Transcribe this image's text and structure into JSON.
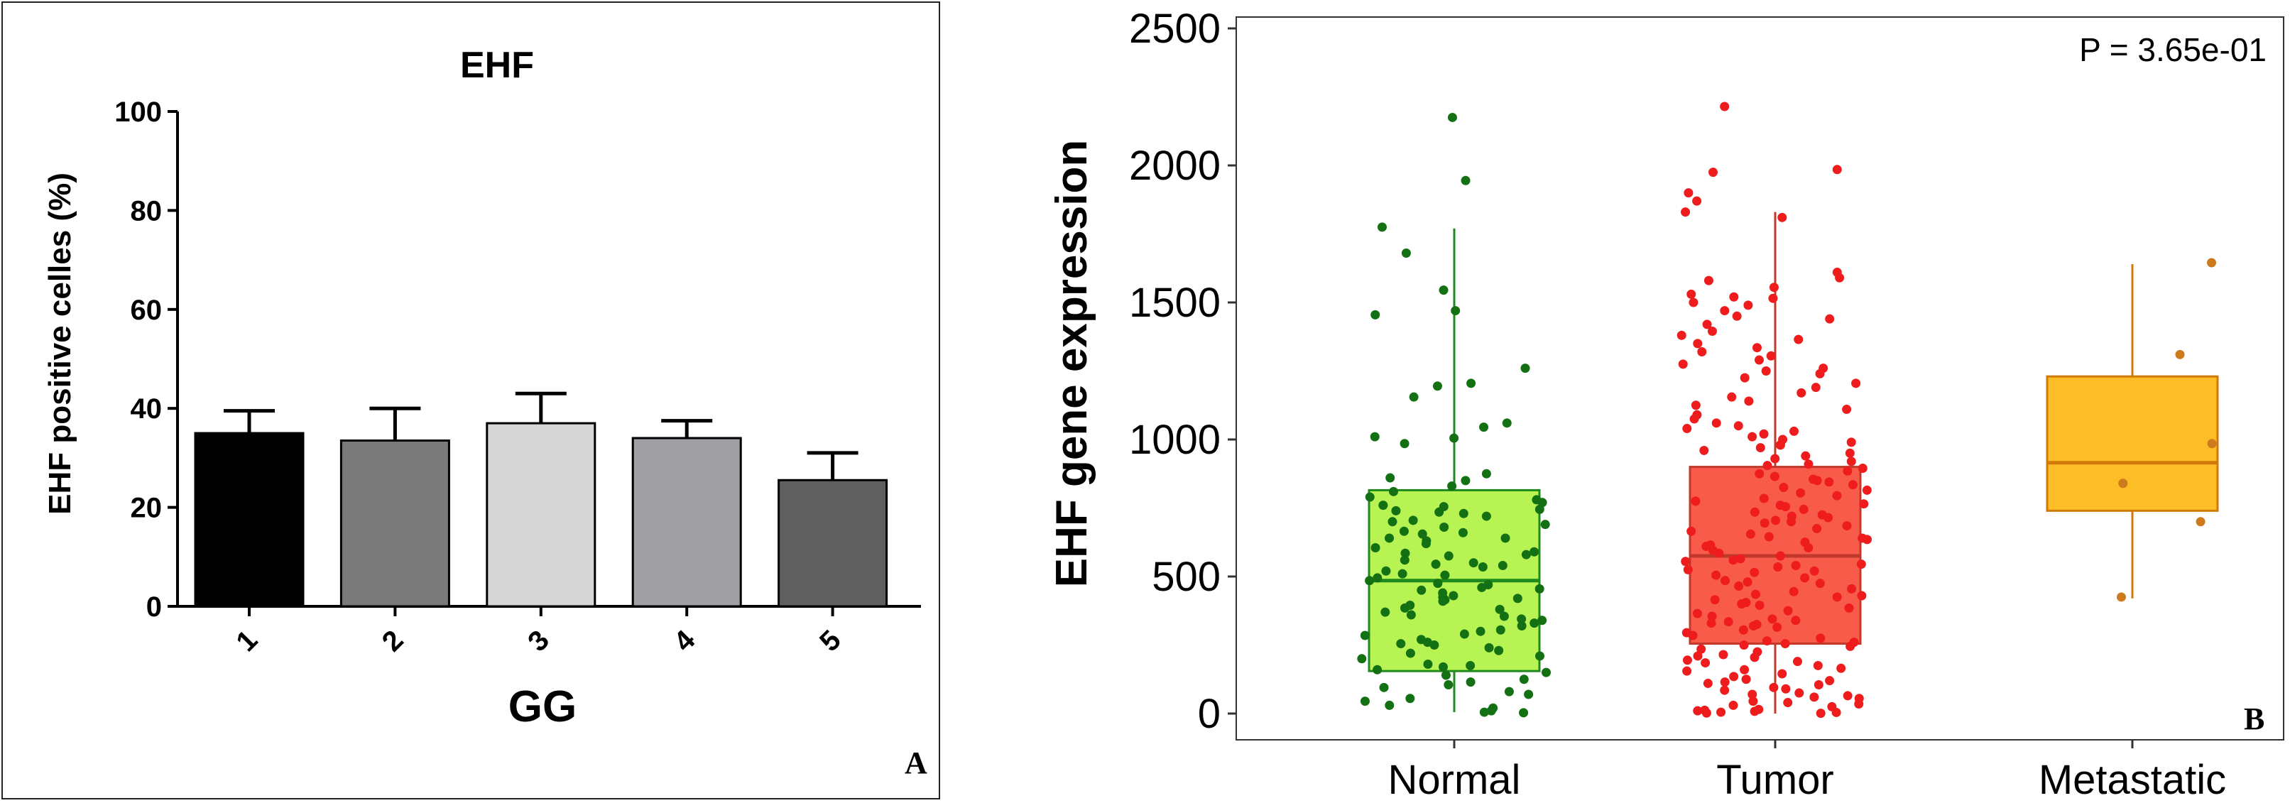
{
  "chart_data": [
    {
      "panel_label": "A",
      "type": "bar",
      "title": "EHF",
      "xlabel": "GG",
      "ylabel": "EHF positive celles (%)",
      "ylim": [
        0,
        100
      ],
      "yticks": [
        0,
        20,
        40,
        60,
        80,
        100
      ],
      "categories": [
        "1",
        "2",
        "3",
        "4",
        "5"
      ],
      "values": [
        35,
        33.5,
        37,
        34,
        25.5
      ],
      "error": [
        4.5,
        6.5,
        6,
        3.5,
        5.5
      ],
      "colors": [
        "#000000",
        "#7a7a7a",
        "#d6d6d6",
        "#a0a0a4",
        "#606060"
      ]
    },
    {
      "panel_label": "B",
      "type": "box",
      "ylabel": "EHF gene expression",
      "annotation": "P = 3.65e-01",
      "ylim": [
        0,
        2500
      ],
      "yticks": [
        0,
        500,
        1000,
        1500,
        2000,
        2500
      ],
      "categories": [
        "Normal",
        "Tumor",
        "Metastatic"
      ],
      "series": [
        {
          "name": "Normal",
          "fill": "#b7f353",
          "stroke": "#1e8a1e",
          "point": "#137113",
          "whisker_low": 5,
          "q1": 155,
          "median": 485,
          "q3": 815,
          "whisker_high": 1770,
          "points": [
            2175,
            1945,
            1775,
            1680,
            1545,
            1470,
            1455,
            1260,
            1205,
            1195,
            1155,
            1060,
            1045,
            1010,
            1005,
            985,
            875,
            860,
            850,
            830,
            810,
            790,
            780,
            770,
            760,
            755,
            745,
            740,
            735,
            730,
            720,
            705,
            700,
            690,
            680,
            665,
            660,
            655,
            640,
            640,
            630,
            620,
            605,
            590,
            585,
            580,
            575,
            560,
            550,
            545,
            540,
            535,
            520,
            510,
            505,
            495,
            485,
            475,
            470,
            460,
            455,
            450,
            440,
            430,
            425,
            420,
            415,
            410,
            395,
            385,
            380,
            370,
            360,
            355,
            345,
            340,
            330,
            320,
            305,
            300,
            290,
            285,
            270,
            260,
            255,
            250,
            240,
            230,
            220,
            210,
            200,
            180,
            175,
            170,
            160,
            150,
            140,
            125,
            115,
            105,
            95,
            80,
            70,
            55,
            45,
            30,
            20,
            10,
            5,
            3
          ]
        },
        {
          "name": "Tumor",
          "fill": "#f95b4b",
          "stroke": "#c0392b",
          "point": "#ee1c1c",
          "whisker_low": 0,
          "q1": 255,
          "median": 575,
          "q3": 900,
          "whisker_high": 1830,
          "points": [
            2215,
            1985,
            1975,
            1900,
            1870,
            1830,
            1810,
            1610,
            1590,
            1580,
            1555,
            1530,
            1520,
            1515,
            1500,
            1490,
            1470,
            1450,
            1440,
            1420,
            1395,
            1380,
            1365,
            1350,
            1335,
            1320,
            1305,
            1290,
            1275,
            1260,
            1250,
            1240,
            1225,
            1205,
            1190,
            1170,
            1155,
            1140,
            1125,
            1110,
            1090,
            1075,
            1060,
            1050,
            1040,
            1030,
            1020,
            1010,
            1000,
            990,
            980,
            970,
            960,
            950,
            940,
            930,
            920,
            910,
            905,
            895,
            885,
            875,
            865,
            855,
            845,
            835,
            825,
            815,
            805,
            795,
            785,
            775,
            765,
            755,
            745,
            735,
            725,
            715,
            705,
            695,
            685,
            675,
            665,
            655,
            645,
            635,
            625,
            615,
            605,
            595,
            585,
            575,
            565,
            555,
            545,
            535,
            525,
            515,
            505,
            495,
            485,
            475,
            465,
            455,
            445,
            435,
            425,
            415,
            405,
            395,
            385,
            375,
            365,
            355,
            345,
            335,
            325,
            315,
            305,
            295,
            285,
            275,
            265,
            255,
            245,
            235,
            225,
            215,
            205,
            195,
            185,
            175,
            165,
            155,
            145,
            135,
            125,
            115,
            105,
            95,
            85,
            75,
            65,
            55,
            45,
            35,
            25,
            15,
            10,
            5,
            2,
            850,
            720,
            640,
            560,
            480,
            400,
            330,
            260,
            190,
            120,
            60,
            30,
            700,
            610,
            520,
            430,
            340,
            250,
            160,
            90,
            40,
            12,
            8,
            4,
            1,
            980,
            760,
            540,
            320,
            210,
            110,
            70
          ]
        },
        {
          "name": "Metastatic",
          "fill": "#fdbd27",
          "stroke": "#d17a09",
          "point": "#cc7a1c",
          "whisker_low": 420,
          "q1": 740,
          "median": 915,
          "q3": 1230,
          "whisker_high": 1640,
          "points": [
            1645,
            1310,
            985,
            840,
            700,
            425
          ]
        }
      ]
    }
  ]
}
